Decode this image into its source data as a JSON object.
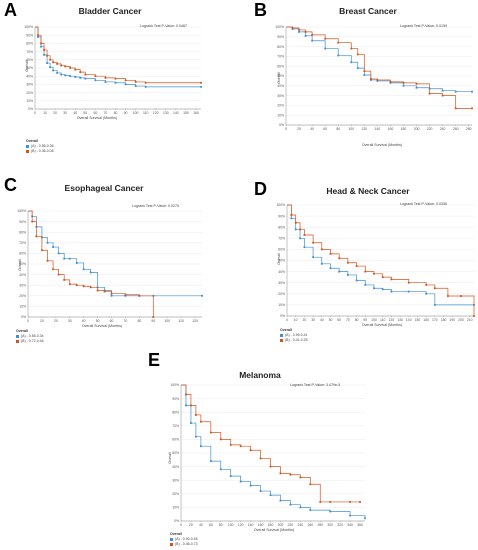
{
  "legend_title": "Overall",
  "y_axis_title": "Overall",
  "x_axis_title": "Overall Survival (Months)",
  "colors": {
    "low": "#3f8fd2",
    "high": "#d4541c"
  },
  "chart_data": [
    {
      "letter": "A",
      "type": "line",
      "title": "Bladder Cancer",
      "pvalue": "Logrank Test P-Value: 0.0487",
      "xlim": [
        0,
        165
      ],
      "xticks": [
        0,
        10,
        20,
        30,
        40,
        50,
        60,
        70,
        80,
        90,
        100,
        110,
        120,
        130,
        140,
        150,
        160
      ],
      "ylim": [
        0,
        100
      ],
      "yticks": [
        "0%",
        "10%",
        "20%",
        "30%",
        "40%",
        "50%",
        "60%",
        "70%",
        "80%",
        "90%",
        "100%"
      ],
      "legend": [
        "(A) - 0.55-0.36",
        "(B) - 0.36-0.06"
      ],
      "series": [
        {
          "group": "low",
          "x": [
            0,
            3,
            6,
            9,
            12,
            15,
            18,
            22,
            26,
            30,
            35,
            40,
            45,
            50,
            60,
            70,
            80,
            90,
            100,
            110,
            165
          ],
          "y": [
            100,
            88,
            76,
            66,
            56,
            51,
            47,
            44,
            42,
            41,
            40,
            39,
            38,
            37,
            35,
            33,
            32,
            30,
            28,
            27,
            27
          ]
        },
        {
          "group": "high",
          "x": [
            0,
            3,
            6,
            9,
            12,
            15,
            18,
            22,
            26,
            30,
            35,
            40,
            45,
            50,
            60,
            70,
            80,
            90,
            100,
            110,
            165
          ],
          "y": [
            100,
            90,
            80,
            72,
            65,
            60,
            57,
            55,
            53,
            52,
            50,
            48,
            45,
            42,
            40,
            38,
            37,
            35,
            33,
            32,
            32
          ]
        }
      ]
    },
    {
      "letter": "B",
      "type": "line",
      "title": "Breast Cancer",
      "pvalue": "Logrank Test P-Value: 0.0159",
      "xlim": [
        0,
        285
      ],
      "xticks": [
        0,
        20,
        40,
        60,
        80,
        100,
        120,
        140,
        160,
        180,
        200,
        220,
        240,
        260,
        280
      ],
      "ylim": [
        0,
        100
      ],
      "yticks": [
        "0%",
        "10%",
        "20%",
        "30%",
        "40%",
        "50%",
        "60%",
        "70%",
        "80%",
        "90%",
        "100%"
      ],
      "legend": [
        "(A) - 0.58-0.34",
        "(B) - 0.34-0.08"
      ],
      "series": [
        {
          "group": "low",
          "x": [
            0,
            10,
            20,
            30,
            40,
            60,
            80,
            100,
            110,
            120,
            130,
            140,
            160,
            180,
            200,
            220,
            240,
            260,
            285
          ],
          "y": [
            100,
            98,
            95,
            91,
            86,
            78,
            71,
            64,
            58,
            51,
            46,
            45,
            43,
            40,
            38,
            37,
            35,
            34,
            34
          ]
        },
        {
          "group": "high",
          "x": [
            0,
            10,
            20,
            30,
            40,
            60,
            80,
            100,
            110,
            120,
            130,
            140,
            160,
            180,
            200,
            220,
            240,
            260,
            285
          ],
          "y": [
            100,
            99,
            97,
            95,
            92,
            88,
            84,
            78,
            72,
            55,
            47,
            46,
            44,
            43,
            42,
            32,
            30,
            17,
            17
          ]
        }
      ]
    },
    {
      "letter": "C",
      "type": "line",
      "title": "Esophageal Cancer",
      "pvalue": "Logrank Test P-Value: 0.0275",
      "xlim": [
        0,
        125
      ],
      "xticks": [
        0,
        10,
        20,
        30,
        40,
        50,
        60,
        70,
        80,
        90,
        100,
        110,
        120
      ],
      "ylim": [
        0,
        100
      ],
      "yticks": [
        "0%",
        "10%",
        "20%",
        "30%",
        "40%",
        "50%",
        "60%",
        "70%",
        "80%",
        "90%",
        "100%"
      ],
      "legend": [
        "(A) - 0.55-0.34",
        "(B) - 0.72-0.46"
      ],
      "series": [
        {
          "group": "low",
          "x": [
            0,
            3,
            6,
            10,
            14,
            18,
            22,
            26,
            30,
            35,
            40,
            45,
            50,
            55,
            60,
            70,
            80,
            90,
            125
          ],
          "y": [
            100,
            95,
            85,
            75,
            70,
            66,
            60,
            55,
            55,
            51,
            45,
            42,
            28,
            25,
            20,
            20,
            20,
            20,
            20
          ]
        },
        {
          "group": "high",
          "x": [
            0,
            3,
            6,
            10,
            14,
            18,
            22,
            26,
            30,
            35,
            40,
            45,
            50,
            55,
            60,
            70,
            80,
            90
          ],
          "y": [
            100,
            90,
            76,
            63,
            53,
            45,
            40,
            35,
            31,
            30,
            29,
            28,
            25,
            24,
            22,
            21,
            20,
            0
          ]
        }
      ]
    },
    {
      "letter": "D",
      "type": "line",
      "title": "Head & Neck Cancer",
      "pvalue": "Logrank Test P-Value: 0.0356",
      "xlim": [
        0,
        215
      ],
      "xticks": [
        0,
        10,
        20,
        30,
        40,
        50,
        60,
        70,
        80,
        90,
        100,
        110,
        120,
        130,
        140,
        150,
        160,
        170,
        180,
        190,
        200,
        210
      ],
      "ylim": [
        0,
        100
      ],
      "yticks": [
        "0%",
        "10%",
        "20%",
        "30%",
        "40%",
        "50%",
        "60%",
        "70%",
        "80%",
        "90%",
        "100%"
      ],
      "legend": [
        "(A) - 0.99-0.41",
        "(B) - 0.41-0.25"
      ],
      "series": [
        {
          "group": "low",
          "x": [
            0,
            5,
            10,
            15,
            20,
            30,
            40,
            50,
            60,
            70,
            80,
            90,
            100,
            110,
            120,
            140,
            160,
            170,
            215
          ],
          "y": [
            100,
            88,
            78,
            70,
            62,
            53,
            47,
            43,
            40,
            37,
            32,
            28,
            25,
            24,
            22,
            22,
            20,
            10,
            10
          ]
        },
        {
          "group": "high",
          "x": [
            0,
            5,
            10,
            15,
            20,
            30,
            40,
            50,
            60,
            70,
            80,
            90,
            100,
            110,
            120,
            140,
            160,
            170,
            185,
            200,
            215
          ],
          "y": [
            100,
            91,
            84,
            78,
            73,
            66,
            60,
            56,
            52,
            48,
            45,
            40,
            38,
            35,
            33,
            30,
            28,
            25,
            18,
            18,
            0
          ]
        }
      ]
    },
    {
      "letter": "E",
      "type": "line",
      "title": "Melanoma",
      "pvalue": "Logrank Test P-Value: 3.479e-5",
      "xlim": [
        0,
        370
      ],
      "xticks": [
        0,
        20,
        40,
        60,
        80,
        100,
        120,
        140,
        160,
        180,
        200,
        220,
        240,
        260,
        280,
        300,
        320,
        340,
        360
      ],
      "ylim": [
        0,
        100
      ],
      "yticks": [
        "0%",
        "10%",
        "20%",
        "30%",
        "40%",
        "50%",
        "60%",
        "70%",
        "80%",
        "90%",
        "100%"
      ],
      "legend": [
        "(A) - 0.90-0.46",
        "(B) - 0.46-0.73"
      ],
      "series": [
        {
          "group": "low",
          "x": [
            0,
            10,
            20,
            30,
            40,
            60,
            80,
            100,
            120,
            140,
            160,
            180,
            200,
            220,
            240,
            260,
            300,
            340,
            370
          ],
          "y": [
            100,
            85,
            72,
            62,
            55,
            44,
            38,
            33,
            29,
            26,
            22,
            19,
            15,
            12,
            10,
            8,
            7,
            4,
            2
          ]
        },
        {
          "group": "high",
          "x": [
            0,
            10,
            20,
            30,
            40,
            60,
            80,
            100,
            120,
            140,
            160,
            180,
            200,
            220,
            240,
            260,
            280,
            300,
            340,
            360
          ],
          "y": [
            100,
            93,
            85,
            78,
            73,
            65,
            60,
            56,
            55,
            52,
            46,
            40,
            35,
            34,
            32,
            27,
            14,
            14,
            14,
            14
          ]
        }
      ]
    }
  ]
}
